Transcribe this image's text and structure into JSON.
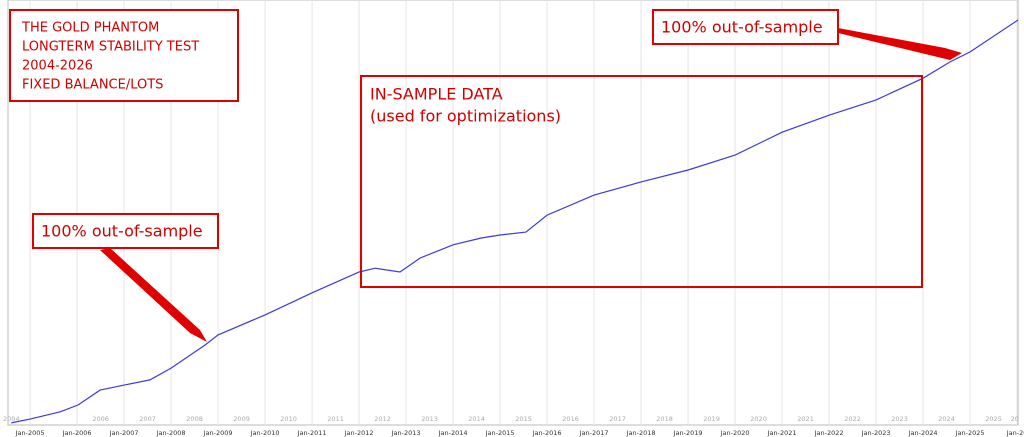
{
  "chart_data": {
    "type": "line",
    "title_lines": [
      "THE GOLD PHANTOM",
      "LONGTERM STABILITY TEST",
      "2004-2026",
      "FIXED BALANCE/LOTS"
    ],
    "annotations": [
      "IN-SAMPLE DATA",
      "(used for optimizations)",
      "100% out-of-sample",
      "100% out-of-sample"
    ],
    "x": [
      2004.6,
      2005,
      2005.64,
      2006.02,
      2006.49,
      2007,
      2007.55,
      2008,
      2008.72,
      2009,
      2010,
      2011,
      2012,
      2012.34,
      2012.87,
      2013.3,
      2014,
      2014.6,
      2015,
      2015.55,
      2016,
      2017,
      2018,
      2019,
      2020,
      2021,
      2022,
      2023,
      2024,
      2024.57,
      2025,
      2026.02
    ],
    "series": [
      {
        "color": "#3a3ae0",
        "values": [
          0.5,
          1.4,
          3.1,
          4.7,
          8.2,
          9.4,
          10.6,
          13.4,
          18.8,
          21.2,
          25.9,
          31.1,
          36,
          36.9,
          36,
          39.3,
          42.4,
          44,
          44.7,
          45.4,
          49.4,
          54.1,
          57.2,
          60,
          63.5,
          68.9,
          72.9,
          76.5,
          81.6,
          85.4,
          87.8,
          95.3
        ]
      }
    ],
    "xlim": [
      2004.53,
      2026.02
    ],
    "ylim": [
      0,
      100
    ],
    "xticks": [
      {
        "value": 2005,
        "label": "Jan-2005"
      },
      {
        "value": 2006,
        "label": "Jan-2006"
      },
      {
        "value": 2007,
        "label": "Jan-2007"
      },
      {
        "value": 2008,
        "label": "Jan-2008"
      },
      {
        "value": 2009,
        "label": "Jan-2009"
      },
      {
        "value": 2010,
        "label": "Jan-2010"
      },
      {
        "value": 2011,
        "label": "Jan-2011"
      },
      {
        "value": 2012,
        "label": "Jan-2012"
      },
      {
        "value": 2013,
        "label": "Jan-2013"
      },
      {
        "value": 2014,
        "label": "Jan-2014"
      },
      {
        "value": 2015,
        "label": "Jan-2015"
      },
      {
        "value": 2016,
        "label": "Jan-2016"
      },
      {
        "value": 2017,
        "label": "Jan-2017"
      },
      {
        "value": 2018,
        "label": "Jan-2018"
      },
      {
        "value": 2019,
        "label": "Jan-2019"
      },
      {
        "value": 2020,
        "label": "Jan-2020"
      },
      {
        "value": 2021,
        "label": "Jan-2021"
      },
      {
        "value": 2022,
        "label": "Jan-2022"
      },
      {
        "value": 2023,
        "label": "Jan-2023"
      },
      {
        "value": 2024,
        "label": "Jan-2024"
      },
      {
        "value": 2025,
        "label": "Jan-2025"
      },
      {
        "value": 2026,
        "label": "Jan-20"
      }
    ],
    "year_labels": [
      {
        "value": 2004.6,
        "label": "2004"
      },
      {
        "value": 2006.5,
        "label": "2006"
      },
      {
        "value": 2007.5,
        "label": "2007"
      },
      {
        "value": 2008.5,
        "label": "2008"
      },
      {
        "value": 2009.5,
        "label": "2009"
      },
      {
        "value": 2010.5,
        "label": "2010"
      },
      {
        "value": 2011.5,
        "label": "2011"
      },
      {
        "value": 2012.5,
        "label": "2012"
      },
      {
        "value": 2013.5,
        "label": "2013"
      },
      {
        "value": 2014.5,
        "label": "2014"
      },
      {
        "value": 2015.5,
        "label": "2015"
      },
      {
        "value": 2016.5,
        "label": "2016"
      },
      {
        "value": 2017.5,
        "label": "2017"
      },
      {
        "value": 2018.5,
        "label": "2018"
      },
      {
        "value": 2019.5,
        "label": "2019"
      },
      {
        "value": 2020.5,
        "label": "2020"
      },
      {
        "value": 2021.5,
        "label": "2021"
      },
      {
        "value": 2022.5,
        "label": "2022"
      },
      {
        "value": 2023.5,
        "label": "2023"
      },
      {
        "value": 2024.5,
        "label": "2024"
      },
      {
        "value": 2025.5,
        "label": "2025"
      },
      {
        "value": 2025.95,
        "label": "20"
      }
    ],
    "grid": true
  }
}
